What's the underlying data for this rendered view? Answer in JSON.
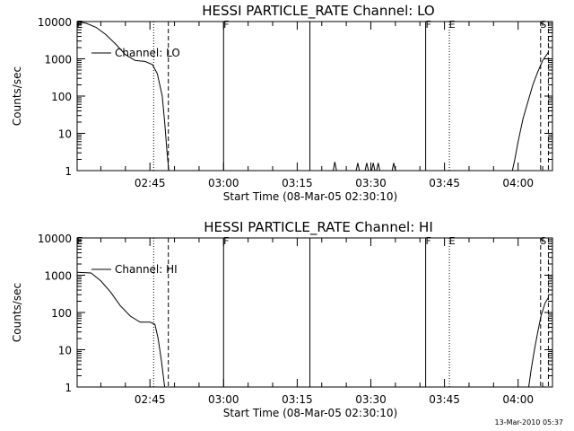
{
  "chart_data": [
    {
      "type": "line",
      "title": "HESSI PARTICLE_RATE Channel: LO",
      "xlabel": "Start Time (08-Mar-05 02:30:10)",
      "ylabel": "Counts/sec",
      "y_scale": "log",
      "ylim": [
        1,
        10000
      ],
      "xlim": [
        "02:30:10",
        "04:07:00"
      ],
      "x_ticks": [
        "02:45",
        "03:00",
        "03:15",
        "03:30",
        "03:45",
        "04:00"
      ],
      "y_ticks": [
        "1",
        "10",
        "100",
        "1000",
        "10000"
      ],
      "legend": {
        "label": "Channel: LO",
        "position": "top-left"
      },
      "markers": [
        {
          "time": "02:30:10",
          "label": "E",
          "style": "solid"
        },
        {
          "time": "02:45:45",
          "label": "",
          "style": "dotted"
        },
        {
          "time": "02:48:45",
          "label": "",
          "style": "dashed"
        },
        {
          "time": "03:00:00",
          "label": "F",
          "style": "solid"
        },
        {
          "time": "03:17:35",
          "label": "",
          "style": "solid"
        },
        {
          "time": "03:41:10",
          "label": "F",
          "style": "solid"
        },
        {
          "time": "03:46:00",
          "label": "E",
          "style": "dotted"
        },
        {
          "time": "04:04:35",
          "label": "S",
          "style": "dashed"
        },
        {
          "time": "04:06:10",
          "label": "",
          "style": "dashed"
        }
      ],
      "series": [
        {
          "name": "Channel: LO",
          "segments": [
            [
              [
                "02:30:10",
                10000
              ],
              [
                "02:32:00",
                9000
              ],
              [
                "02:34:00",
                7000
              ],
              [
                "02:36:00",
                4500
              ],
              [
                "02:38:00",
                2500
              ],
              [
                "02:40:00",
                1300
              ],
              [
                "02:42:00",
                900
              ],
              [
                "02:44:00",
                850
              ],
              [
                "02:45:30",
                700
              ],
              [
                "02:46:30",
                400
              ],
              [
                "02:47:30",
                100
              ],
              [
                "02:48:00",
                20
              ],
              [
                "02:48:30",
                3
              ],
              [
                "02:48:50",
                1
              ]
            ],
            [
              [
                "03:22:20",
                1
              ],
              [
                "03:22:40",
                1.7
              ],
              [
                "03:23:00",
                1
              ]
            ],
            [
              [
                "03:27:00",
                1
              ],
              [
                "03:27:20",
                1.6
              ],
              [
                "03:27:40",
                1
              ]
            ],
            [
              [
                "03:28:50",
                1
              ],
              [
                "03:29:10",
                1.6
              ],
              [
                "03:29:30",
                1
              ]
            ],
            [
              [
                "03:30:10",
                1
              ],
              [
                "03:30:30",
                1.6
              ],
              [
                "03:30:50",
                1
              ]
            ],
            [
              [
                "03:31:10",
                1
              ],
              [
                "03:31:30",
                1.6
              ],
              [
                "03:31:50",
                1
              ]
            ],
            [
              [
                "03:34:20",
                1
              ],
              [
                "03:34:40",
                1.6
              ],
              [
                "03:35:00",
                1
              ]
            ],
            [
              [
                "03:58:50",
                1
              ],
              [
                "03:59:20",
                2
              ],
              [
                "04:00:00",
                6
              ],
              [
                "04:01:00",
                25
              ],
              [
                "04:02:00",
                70
              ],
              [
                "04:03:00",
                200
              ],
              [
                "04:04:00",
                450
              ],
              [
                "04:05:00",
                900
              ],
              [
                "04:06:10",
                1500
              ]
            ]
          ]
        }
      ]
    },
    {
      "type": "line",
      "title": "HESSI PARTICLE_RATE Channel: HI",
      "xlabel": "Start Time (08-Mar-05 02:30:10)",
      "ylabel": "Counts/sec",
      "y_scale": "log",
      "ylim": [
        1,
        10000
      ],
      "xlim": [
        "02:30:10",
        "04:07:00"
      ],
      "x_ticks": [
        "02:45",
        "03:00",
        "03:15",
        "03:30",
        "03:45",
        "04:00"
      ],
      "y_ticks": [
        "1",
        "10",
        "100",
        "1000",
        "10000"
      ],
      "legend": {
        "label": "Channel: HI",
        "position": "top-left"
      },
      "markers": [
        {
          "time": "02:30:10",
          "label": "E",
          "style": "solid"
        },
        {
          "time": "02:45:45",
          "label": "",
          "style": "dotted"
        },
        {
          "time": "02:48:45",
          "label": "",
          "style": "dashed"
        },
        {
          "time": "03:00:00",
          "label": "F",
          "style": "solid"
        },
        {
          "time": "03:17:35",
          "label": "",
          "style": "solid"
        },
        {
          "time": "03:41:10",
          "label": "F",
          "style": "solid"
        },
        {
          "time": "03:46:00",
          "label": "E",
          "style": "dotted"
        },
        {
          "time": "04:04:35",
          "label": "S",
          "style": "dashed"
        },
        {
          "time": "04:06:10",
          "label": "",
          "style": "dashed"
        }
      ],
      "series": [
        {
          "name": "Channel: HI",
          "segments": [
            [
              [
                "02:30:10",
                1200
              ],
              [
                "02:33:00",
                1150
              ],
              [
                "02:35:00",
                700
              ],
              [
                "02:37:00",
                350
              ],
              [
                "02:39:00",
                150
              ],
              [
                "02:41:00",
                80
              ],
              [
                "02:43:00",
                55
              ],
              [
                "02:45:00",
                55
              ],
              [
                "02:46:00",
                48
              ],
              [
                "02:46:40",
                20
              ],
              [
                "02:47:20",
                5
              ],
              [
                "02:48:00",
                1
              ]
            ],
            [
              [
                "04:02:10",
                1
              ],
              [
                "04:02:40",
                3
              ],
              [
                "04:03:20",
                10
              ],
              [
                "04:04:00",
                30
              ],
              [
                "04:04:40",
                80
              ],
              [
                "04:05:30",
                180
              ],
              [
                "04:06:10",
                250
              ]
            ]
          ]
        }
      ]
    }
  ],
  "footer": {
    "timestamp": "13-Mar-2010 05:37"
  }
}
